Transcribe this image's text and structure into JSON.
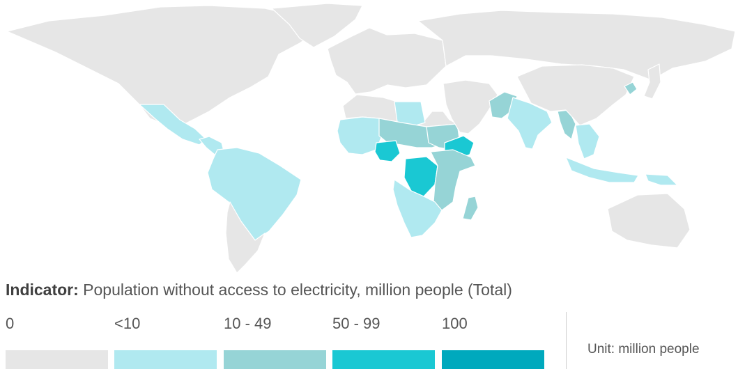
{
  "map": {
    "colors": {
      "0": "#e6e6e6",
      "lt10": "#b0e9f0",
      "10-49": "#96d4d6",
      "50-99": "#1ac8d3",
      "100": "#00a9bd"
    },
    "regions": [
      {
        "name": "North America",
        "class": "0"
      },
      {
        "name": "Greenland",
        "class": "0"
      },
      {
        "name": "Mexico",
        "class": "lt10"
      },
      {
        "name": "Central America",
        "class": "lt10"
      },
      {
        "name": "South America North",
        "class": "lt10"
      },
      {
        "name": "South America South",
        "class": "0"
      },
      {
        "name": "Europe",
        "class": "0"
      },
      {
        "name": "Russia",
        "class": "0"
      },
      {
        "name": "North Africa",
        "class": "0"
      },
      {
        "name": "Libya",
        "class": "lt10"
      },
      {
        "name": "West Africa",
        "class": "lt10"
      },
      {
        "name": "Sahel",
        "class": "10-49"
      },
      {
        "name": "Nigeria",
        "class": "50-99"
      },
      {
        "name": "Sudan",
        "class": "10-49"
      },
      {
        "name": "Ethiopia",
        "class": "50-99"
      },
      {
        "name": "DR Congo",
        "class": "50-99"
      },
      {
        "name": "East Africa",
        "class": "10-49"
      },
      {
        "name": "Southern Africa",
        "class": "lt10"
      },
      {
        "name": "Madagascar",
        "class": "10-49"
      },
      {
        "name": "Middle East",
        "class": "0"
      },
      {
        "name": "Pakistan",
        "class": "10-49"
      },
      {
        "name": "India",
        "class": "lt10"
      },
      {
        "name": "Myanmar",
        "class": "10-49"
      },
      {
        "name": "China",
        "class": "0"
      },
      {
        "name": "Southeast Asia",
        "class": "lt10"
      },
      {
        "name": "Indonesia",
        "class": "lt10"
      },
      {
        "name": "Papua New Guinea",
        "class": "lt10"
      },
      {
        "name": "North Korea",
        "class": "10-49"
      },
      {
        "name": "Japan",
        "class": "0"
      },
      {
        "name": "Australia",
        "class": "0"
      }
    ]
  },
  "indicator": {
    "label": "Indicator:",
    "text": " Population without access to electricity, million people (Total)"
  },
  "legend": [
    {
      "label": "0",
      "color": "#e6e6e6"
    },
    {
      "label": "<10",
      "color": "#b0e9f0"
    },
    {
      "label": "10 - 49",
      "color": "#96d4d6"
    },
    {
      "label": "50 - 99",
      "color": "#1ac8d3"
    },
    {
      "label": "100",
      "color": "#00a9bd"
    }
  ],
  "unit": "Unit: million people"
}
